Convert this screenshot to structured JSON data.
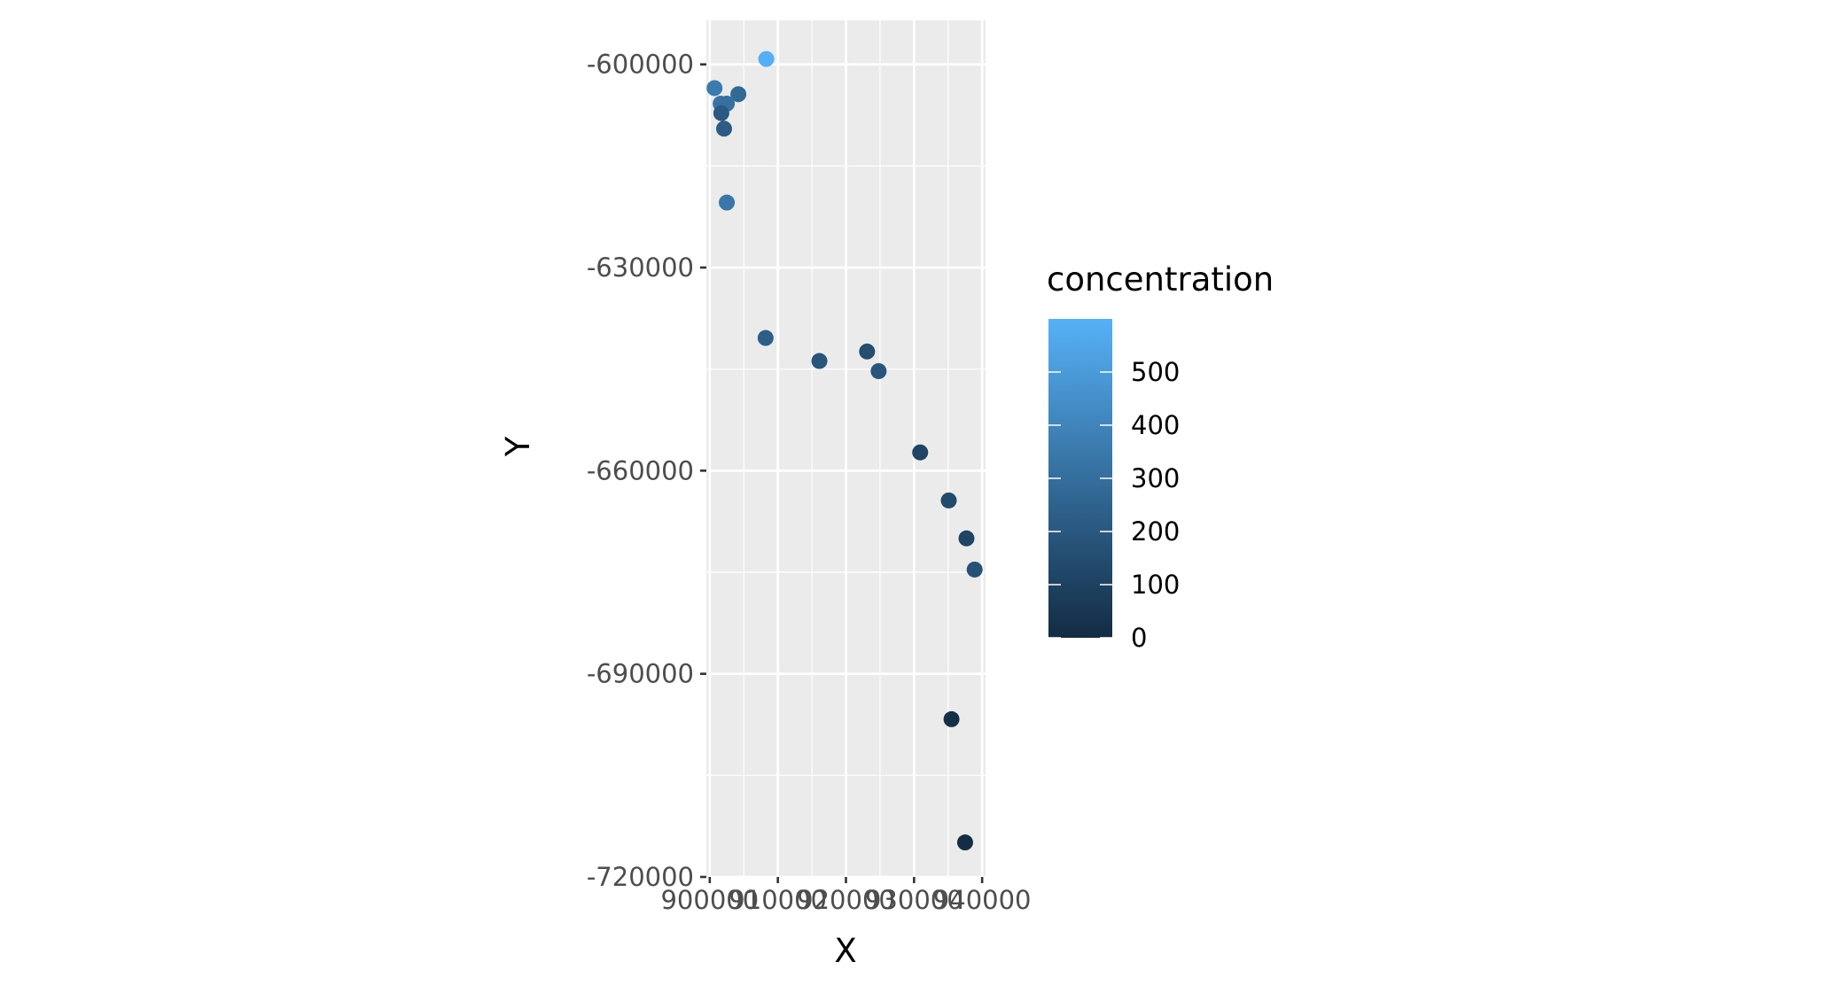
{
  "chart_data": {
    "type": "scatter",
    "xlabel": "X",
    "ylabel": "Y",
    "xlim": [
      899500,
      940500
    ],
    "ylim": [
      -720000,
      -593500
    ],
    "x_ticks": [
      900000,
      910000,
      920000,
      930000,
      940000
    ],
    "x_tick_labels": [
      "900000",
      "910000",
      "920000",
      "930000",
      "940000"
    ],
    "y_ticks": [
      -600000,
      -630000,
      -660000,
      -690000,
      -720000
    ],
    "y_tick_labels": [
      "-600000",
      "-630000",
      "-660000",
      "-690000",
      "-720000"
    ],
    "grid": true,
    "legend": {
      "title": "concentration",
      "placement": "right",
      "type": "colorbar",
      "range": [
        0,
        600
      ],
      "ticks": [
        0,
        100,
        200,
        300,
        400,
        500
      ],
      "tick_labels": [
        "0",
        "100",
        "200",
        "300",
        "400",
        "500"
      ],
      "color_low": "#132B43",
      "color_high": "#56B1F7"
    },
    "points": [
      {
        "x": 908300,
        "y": -599200,
        "concentration": 590
      },
      {
        "x": 900700,
        "y": -603500,
        "concentration": 360
      },
      {
        "x": 904200,
        "y": -604400,
        "concentration": 280
      },
      {
        "x": 901600,
        "y": -605800,
        "concentration": 330
      },
      {
        "x": 902500,
        "y": -605800,
        "concentration": 310
      },
      {
        "x": 901700,
        "y": -607200,
        "concentration": 210
      },
      {
        "x": 902100,
        "y": -609500,
        "concentration": 220
      },
      {
        "x": 902500,
        "y": -620400,
        "concentration": 340
      },
      {
        "x": 908200,
        "y": -640400,
        "concentration": 230
      },
      {
        "x": 916100,
        "y": -643800,
        "concentration": 190
      },
      {
        "x": 923100,
        "y": -642400,
        "concentration": 150
      },
      {
        "x": 924800,
        "y": -645300,
        "concentration": 190
      },
      {
        "x": 930900,
        "y": -657300,
        "concentration": 110
      },
      {
        "x": 935100,
        "y": -664400,
        "concentration": 140
      },
      {
        "x": 937700,
        "y": -670000,
        "concentration": 110
      },
      {
        "x": 938900,
        "y": -674600,
        "concentration": 170
      },
      {
        "x": 935500,
        "y": -696700,
        "concentration": 20
      },
      {
        "x": 937500,
        "y": -714900,
        "concentration": 10
      }
    ]
  }
}
